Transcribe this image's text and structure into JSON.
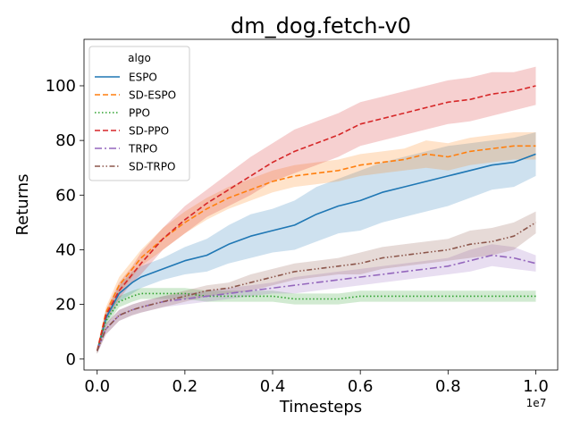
{
  "chart_data": {
    "type": "line",
    "title": "dm_dog.fetch-v0",
    "xlabel": "Timesteps",
    "ylabel": "Returns",
    "x_scale_label": "1e7",
    "xlim": [
      -0.03,
      1.05
    ],
    "ylim": [
      -4,
      117
    ],
    "xticks": [
      0.0,
      0.2,
      0.4,
      0.6,
      0.8,
      1.0
    ],
    "xtick_labels": [
      "0.0",
      "0.2",
      "0.4",
      "0.6",
      "0.8",
      "1.0"
    ],
    "yticks": [
      0,
      20,
      40,
      60,
      80,
      100
    ],
    "ytick_labels": [
      "0",
      "20",
      "40",
      "60",
      "80",
      "100"
    ],
    "grid": false,
    "legend": {
      "title": "algo",
      "placement": "top-left"
    },
    "shaded_band": "confidence interval",
    "series": [
      {
        "name": "ESPO",
        "color": "#1f77b4",
        "dash": "solid",
        "x": [
          0.0,
          0.02,
          0.05,
          0.08,
          0.1,
          0.15,
          0.2,
          0.25,
          0.3,
          0.35,
          0.4,
          0.45,
          0.5,
          0.55,
          0.6,
          0.65,
          0.7,
          0.75,
          0.8,
          0.85,
          0.9,
          0.95,
          1.0
        ],
        "values": [
          3,
          15,
          24,
          28,
          30,
          33,
          36,
          38,
          42,
          45,
          47,
          49,
          53,
          56,
          58,
          61,
          63,
          65,
          67,
          69,
          71,
          72,
          75
        ],
        "band": [
          1,
          2,
          3,
          4,
          4,
          4,
          5,
          6,
          7,
          8,
          8,
          9,
          10,
          10,
          11,
          11,
          11,
          11,
          11,
          10,
          9,
          9,
          8
        ]
      },
      {
        "name": "SD-ESPO",
        "color": "#ff7f0e",
        "dash": "dashed",
        "x": [
          0.0,
          0.02,
          0.05,
          0.08,
          0.1,
          0.15,
          0.2,
          0.25,
          0.3,
          0.35,
          0.4,
          0.45,
          0.5,
          0.55,
          0.6,
          0.65,
          0.7,
          0.75,
          0.8,
          0.85,
          0.9,
          0.95,
          1.0
        ],
        "values": [
          3,
          17,
          27,
          33,
          37,
          44,
          50,
          55,
          59,
          62,
          65,
          67,
          68,
          69,
          71,
          72,
          73,
          75,
          74,
          76,
          77,
          78,
          78
        ],
        "band": [
          1,
          2,
          3,
          3,
          3,
          4,
          4,
          4,
          4,
          4,
          4,
          4,
          4,
          4,
          4,
          4,
          4,
          5,
          5,
          5,
          5,
          5,
          5
        ]
      },
      {
        "name": "PPO",
        "color": "#2ca02c",
        "dash": "dotted",
        "x": [
          0.0,
          0.02,
          0.05,
          0.08,
          0.1,
          0.15,
          0.2,
          0.25,
          0.3,
          0.35,
          0.4,
          0.45,
          0.5,
          0.55,
          0.6,
          0.65,
          0.7,
          0.75,
          0.8,
          0.85,
          0.9,
          0.95,
          1.0
        ],
        "values": [
          3,
          14,
          21,
          23,
          24,
          24,
          24,
          23,
          23,
          23,
          23,
          22,
          22,
          22,
          23,
          23,
          23,
          23,
          23,
          23,
          23,
          23,
          23
        ],
        "band": [
          1,
          2,
          2,
          2,
          2,
          2,
          2,
          2,
          2,
          2,
          2,
          2,
          2,
          2,
          2,
          2,
          2,
          2,
          2,
          2,
          2,
          2,
          2
        ]
      },
      {
        "name": "SD-PPO",
        "color": "#d62728",
        "dash": "dashed",
        "x": [
          0.0,
          0.02,
          0.05,
          0.08,
          0.1,
          0.15,
          0.2,
          0.25,
          0.3,
          0.35,
          0.4,
          0.45,
          0.5,
          0.55,
          0.6,
          0.65,
          0.7,
          0.75,
          0.8,
          0.85,
          0.9,
          0.95,
          1.0
        ],
        "values": [
          3,
          16,
          25,
          31,
          35,
          44,
          51,
          57,
          62,
          67,
          72,
          76,
          79,
          82,
          86,
          88,
          90,
          92,
          94,
          95,
          97,
          98,
          100
        ],
        "band": [
          1,
          2,
          3,
          3,
          4,
          4,
          5,
          5,
          6,
          7,
          7,
          8,
          8,
          8,
          8,
          8,
          8,
          8,
          8,
          8,
          8,
          7,
          7
        ]
      },
      {
        "name": "TRPO",
        "color": "#9467bd",
        "dash": "dashdot",
        "x": [
          0.0,
          0.02,
          0.05,
          0.08,
          0.1,
          0.15,
          0.2,
          0.25,
          0.3,
          0.35,
          0.4,
          0.45,
          0.5,
          0.55,
          0.6,
          0.65,
          0.7,
          0.75,
          0.8,
          0.85,
          0.9,
          0.95,
          1.0
        ],
        "values": [
          3,
          11,
          16,
          18,
          19,
          21,
          22,
          23,
          24,
          25,
          26,
          27,
          28,
          29,
          30,
          31,
          32,
          33,
          34,
          36,
          38,
          37,
          35
        ],
        "band": [
          1,
          2,
          2,
          2,
          2,
          2,
          2,
          2,
          2,
          2,
          2,
          3,
          3,
          3,
          3,
          3,
          3,
          3,
          3,
          4,
          4,
          4,
          3
        ]
      },
      {
        "name": "SD-TRPO",
        "color": "#8c564b",
        "dash": "dashdotdot",
        "x": [
          0.0,
          0.02,
          0.05,
          0.08,
          0.1,
          0.15,
          0.2,
          0.25,
          0.3,
          0.35,
          0.4,
          0.45,
          0.5,
          0.55,
          0.6,
          0.65,
          0.7,
          0.75,
          0.8,
          0.85,
          0.9,
          0.95,
          1.0
        ],
        "values": [
          3,
          11,
          16,
          18,
          19,
          21,
          23,
          25,
          26,
          28,
          30,
          32,
          33,
          34,
          35,
          37,
          38,
          39,
          40,
          42,
          43,
          45,
          50
        ],
        "band": [
          1,
          2,
          2,
          2,
          2,
          2,
          2,
          2,
          2,
          3,
          3,
          3,
          3,
          3,
          4,
          4,
          4,
          4,
          4,
          5,
          5,
          5,
          4
        ]
      }
    ]
  }
}
